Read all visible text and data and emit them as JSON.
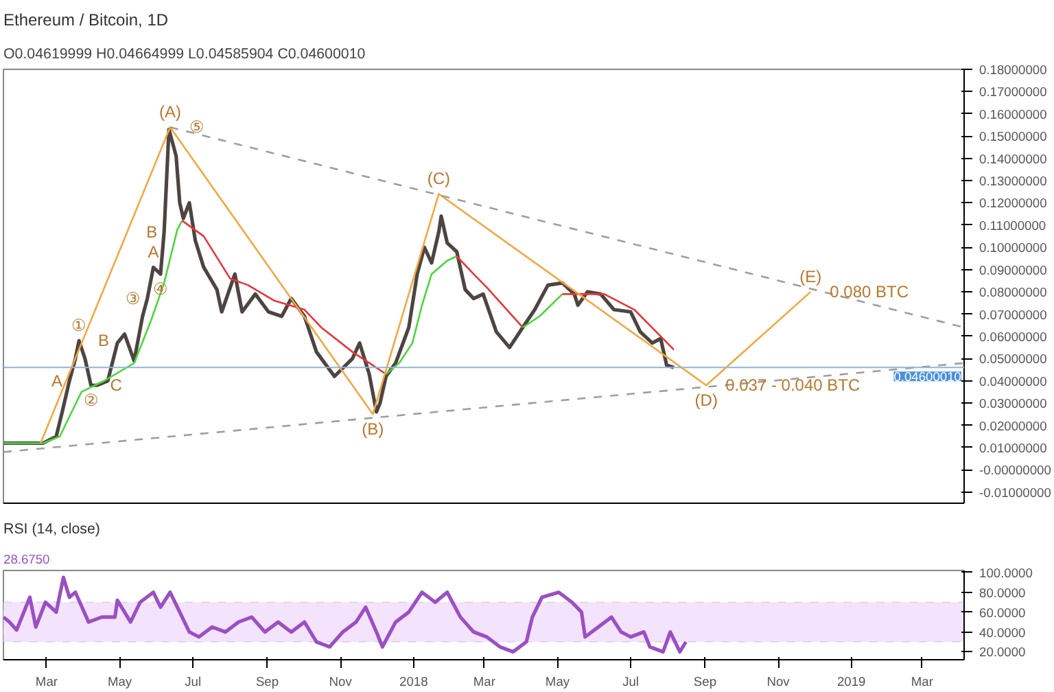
{
  "chart_data": [
    {
      "type": "line",
      "title": "Ethereum / Bitcoin, 1D",
      "subtitle": "O0.04619999 H0.04664999 L0.04585904 C0.04600010",
      "tick_labels": "y",
      "xlim": [
        "2017-01-24",
        "2019-04-05"
      ],
      "xticks": [
        {
          "value": "2017-03-01",
          "label": null
        },
        {
          "value": "2017-05-01",
          "label": null
        },
        {
          "value": "2017-07-01",
          "label": null
        },
        {
          "value": "2017-09-01",
          "label": null
        },
        {
          "value": "2017-11-01",
          "label": null
        },
        {
          "value": "2018-01-01",
          "label": null
        },
        {
          "value": "2018-03-01",
          "label": null
        },
        {
          "value": "2018-05-01",
          "label": null
        },
        {
          "value": "2018-07-01",
          "label": null
        },
        {
          "value": "2018-09-01",
          "label": null
        },
        {
          "value": "2018-11-01",
          "label": null
        },
        {
          "value": "2019-01-01",
          "label": null
        },
        {
          "value": "2019-03-01",
          "label": null
        }
      ],
      "ylim": [
        -0.015,
        0.18
      ],
      "yticks": [
        {
          "value": -0.01,
          "label": "-0.01000000"
        },
        {
          "value": 0,
          "label": "-0.00000000"
        },
        {
          "value": 0.01,
          "label": "0.01000000"
        },
        {
          "value": 0.02,
          "label": "0.02000000"
        },
        {
          "value": 0.03,
          "label": "0.03000000"
        },
        {
          "value": 0.04,
          "label": "0.04000000"
        },
        {
          "value": 0.05,
          "label": "0.05000000"
        },
        {
          "value": 0.06,
          "label": "0.06000000"
        },
        {
          "value": 0.07,
          "label": "0.07000000"
        },
        {
          "value": 0.08,
          "label": "0.08000000"
        },
        {
          "value": 0.09,
          "label": "0.09000000"
        },
        {
          "value": 0.1,
          "label": "0.10000000"
        },
        {
          "value": 0.11,
          "label": "0.11000000"
        },
        {
          "value": 0.12,
          "label": "0.12000000"
        },
        {
          "value": 0.13,
          "label": "0.13000000"
        },
        {
          "value": 0.14,
          "label": "0.14000000"
        },
        {
          "value": 0.15,
          "label": "0.15000000"
        },
        {
          "value": 0.16,
          "label": "0.16000000"
        },
        {
          "value": 0.17,
          "label": "0.17000000"
        },
        {
          "value": 0.18,
          "label": "0.18000000"
        }
      ],
      "ref_lines": [
        {
          "axis": "y",
          "value": 0.0460001,
          "label": "0.04600010",
          "color": "#90b4d8"
        }
      ],
      "series": [
        {
          "color": "#4e4440",
          "x": [
            "2017-01-24",
            "2017-02-15",
            "2017-02-26",
            "2017-03-09",
            "2017-03-14",
            "2017-03-20",
            "2017-03-25",
            "2017-03-28",
            "2017-04-02",
            "2017-04-07",
            "2017-04-12",
            "2017-04-21",
            "2017-04-29",
            "2017-05-05",
            "2017-05-13",
            "2017-05-20",
            "2017-05-24",
            "2017-05-29",
            "2017-06-04",
            "2017-06-07",
            "2017-06-11",
            "2017-06-17",
            "2017-06-20",
            "2017-06-23",
            "2017-06-28",
            "2017-07-03",
            "2017-07-10",
            "2017-07-21",
            "2017-07-25",
            "2017-08-05",
            "2017-08-11",
            "2017-08-22",
            "2017-09-02",
            "2017-09-13",
            "2017-09-21",
            "2017-10-02",
            "2017-10-12",
            "2017-10-27",
            "2017-11-11",
            "2017-11-17",
            "2017-11-25",
            "2017-12-01",
            "2017-12-04",
            "2017-12-09",
            "2017-12-17",
            "2017-12-28",
            "2018-01-04",
            "2018-01-10",
            "2018-01-16",
            "2018-01-22",
            "2018-01-24",
            "2018-01-29",
            "2018-02-06",
            "2018-02-13",
            "2018-02-20",
            "2018-02-28",
            "2018-03-11",
            "2018-03-22",
            "2018-04-02",
            "2018-04-12",
            "2018-04-23",
            "2018-05-05",
            "2018-05-15",
            "2018-05-18",
            "2018-05-26",
            "2018-06-06",
            "2018-06-17",
            "2018-07-01",
            "2018-07-09",
            "2018-07-19",
            "2018-07-26",
            "2018-07-31",
            "2018-08-06"
          ],
          "values": [
            0.012,
            0.012,
            0.012,
            0.015,
            0.026,
            0.04,
            0.05,
            0.058,
            0.05,
            0.038,
            0.038,
            0.04,
            0.057,
            0.061,
            0.049,
            0.069,
            0.077,
            0.091,
            0.088,
            0.107,
            0.153,
            0.141,
            0.12,
            0.113,
            0.12,
            0.103,
            0.091,
            0.081,
            0.071,
            0.088,
            0.071,
            0.079,
            0.071,
            0.069,
            0.077,
            0.069,
            0.053,
            0.042,
            0.05,
            0.057,
            0.043,
            0.026,
            0.03,
            0.042,
            0.048,
            0.064,
            0.088,
            0.1,
            0.093,
            0.107,
            0.114,
            0.102,
            0.098,
            0.081,
            0.077,
            0.079,
            0.062,
            0.055,
            0.064,
            0.072,
            0.083,
            0.084,
            0.079,
            0.074,
            0.08,
            0.079,
            0.072,
            0.071,
            0.062,
            0.057,
            0.059,
            0.047,
            0.046
          ]
        },
        {
          "color": "#4cd63c",
          "x": [
            "2017-01-24",
            "2017-02-26",
            "2017-03-12",
            "2017-03-30",
            "2017-04-18",
            "2017-05-13",
            "2017-05-27",
            "2017-06-07",
            "2017-06-18",
            "2017-06-22"
          ],
          "values": [
            0.012,
            0.012,
            0.015,
            0.035,
            0.04,
            0.048,
            0.067,
            0.084,
            0.108,
            0.112
          ]
        },
        {
          "color": "#e8353b",
          "x": [
            "2017-06-22",
            "2017-07-10",
            "2017-08-01",
            "2017-08-16",
            "2017-09-07",
            "2017-10-02",
            "2017-10-16",
            "2017-11-11",
            "2017-11-28",
            "2017-12-09"
          ],
          "values": [
            0.112,
            0.105,
            0.086,
            0.083,
            0.076,
            0.072,
            0.064,
            0.053,
            0.047,
            0.043
          ]
        },
        {
          "color": "#4cd63c",
          "x": [
            "2017-12-09",
            "2017-12-20",
            "2017-12-31",
            "2018-01-08",
            "2018-01-16",
            "2018-01-29",
            "2018-02-06"
          ],
          "values": [
            0.043,
            0.048,
            0.057,
            0.074,
            0.088,
            0.094,
            0.096
          ]
        },
        {
          "color": "#e8353b",
          "x": [
            "2018-02-06",
            "2018-02-20",
            "2018-03-03",
            "2018-04-02"
          ],
          "values": [
            0.096,
            0.088,
            0.082,
            0.064
          ]
        },
        {
          "color": "#4cd63c",
          "x": [
            "2018-04-02",
            "2018-04-16",
            "2018-05-05"
          ],
          "values": [
            0.064,
            0.069,
            0.079
          ]
        },
        {
          "color": "#e8353b",
          "x": [
            "2018-05-05",
            "2018-06-09",
            "2018-07-04",
            "2018-07-26",
            "2018-08-06"
          ],
          "values": [
            0.079,
            0.079,
            0.072,
            0.06,
            0.054
          ]
        },
        {
          "color": "#f5a742",
          "x": [
            "2017-02-24",
            "2017-06-12",
            "2017-11-28",
            "2018-01-22",
            "2018-09-02",
            "2018-11-28"
          ],
          "values": [
            0.012,
            0.154,
            0.025,
            0.124,
            0.038,
            0.08
          ]
        },
        {
          "color": "#9e9e9e",
          "line_style": "dashed",
          "x": [
            "2017-06-12",
            "2019-04-05"
          ],
          "values": [
            0.154,
            0.064
          ]
        },
        {
          "color": "#9e9e9e",
          "line_style": "dashed",
          "x": [
            "2017-01-24",
            "2019-04-05"
          ],
          "values": [
            0.008,
            0.048
          ]
        }
      ],
      "annotations": [
        {
          "text": "(A)",
          "x": "2017-06-12",
          "y": 0.154
        },
        {
          "text": "(B)",
          "x": "2017-11-28",
          "y": 0.025
        },
        {
          "text": "(C)",
          "x": "2018-01-22",
          "y": 0.124
        },
        {
          "text": "(D)",
          "x": "2018-09-02",
          "y": 0.038
        },
        {
          "text": "(E)",
          "x": "2018-11-28",
          "y": 0.08
        },
        {
          "text": "0.080 BTC",
          "x": "2018-11-28",
          "y": 0.08
        },
        {
          "text": "0.037 - 0.040 BTC",
          "x": "2018-09-02",
          "y": 0.038
        },
        {
          "text": "①",
          "x": "2017-03-28",
          "y": 0.058
        },
        {
          "text": "②",
          "x": "2017-04-07",
          "y": 0.038
        },
        {
          "text": "③",
          "x": "2017-05-24",
          "y": 0.077
        },
        {
          "text": "④",
          "x": "2017-06-04",
          "y": 0.088
        },
        {
          "text": "⑤",
          "x": "2017-06-12",
          "y": 0.154
        },
        {
          "text": "A",
          "x": "2017-03-20",
          "y": 0.04
        },
        {
          "text": "B",
          "x": "2017-03-28",
          "y": 0.058
        },
        {
          "text": "C",
          "x": "2017-04-07",
          "y": 0.038
        },
        {
          "text": "A",
          "x": "2017-05-29",
          "y": 0.091
        },
        {
          "text": "B",
          "x": "2017-06-07",
          "y": 0.107
        }
      ]
    },
    {
      "type": "line",
      "title": "RSI (14, close)",
      "annotations": [
        "28.6750"
      ],
      "xlim": [
        "2017-01-24",
        "2019-04-05"
      ],
      "xticks": [
        {
          "value": "2017-03-01",
          "label": "Mar"
        },
        {
          "value": "2017-05-01",
          "label": "May"
        },
        {
          "value": "2017-07-01",
          "label": "Jul"
        },
        {
          "value": "2017-09-01",
          "label": "Sep"
        },
        {
          "value": "2017-11-01",
          "label": "Nov"
        },
        {
          "value": "2018-01-01",
          "label": "2018"
        },
        {
          "value": "2018-03-01",
          "label": "Mar"
        },
        {
          "value": "2018-05-01",
          "label": "May"
        },
        {
          "value": "2018-07-01",
          "label": "Jul"
        },
        {
          "value": "2018-09-01",
          "label": "Sep"
        },
        {
          "value": "2018-11-01",
          "label": "Nov"
        },
        {
          "value": "2019-01-01",
          "label": "2019"
        },
        {
          "value": "2019-03-01",
          "label": "Mar"
        }
      ],
      "ylim": [
        12,
        102
      ],
      "yticks": [
        {
          "value": 20,
          "label": "20.0000"
        },
        {
          "value": 40,
          "label": "40.0000"
        },
        {
          "value": 60,
          "label": "60.0000"
        },
        {
          "value": 80,
          "label": "80.0000"
        },
        {
          "value": 100,
          "label": "100.0000"
        }
      ],
      "bands": [
        {
          "axis": "y",
          "from": 30,
          "to": 70,
          "color": "#f3e3fc"
        }
      ],
      "series": [
        {
          "color": "#9b4fc4",
          "x": [
            "2017-01-24",
            "2017-01-29",
            "2017-02-04",
            "2017-02-15",
            "2017-02-20",
            "2017-02-28",
            "2017-03-09",
            "2017-03-15",
            "2017-03-20",
            "2017-03-25",
            "2017-04-05",
            "2017-04-16",
            "2017-04-27",
            "2017-04-29",
            "2017-05-10",
            "2017-05-18",
            "2017-05-29",
            "2017-06-04",
            "2017-06-12",
            "2017-06-20",
            "2017-06-28",
            "2017-07-06",
            "2017-07-17",
            "2017-07-28",
            "2017-08-08",
            "2017-08-19",
            "2017-08-30",
            "2017-09-10",
            "2017-09-21",
            "2017-10-02",
            "2017-10-12",
            "2017-10-23",
            "2017-11-03",
            "2017-11-14",
            "2017-11-22",
            "2017-12-01",
            "2017-12-06",
            "2017-12-17",
            "2017-12-28",
            "2018-01-08",
            "2018-01-19",
            "2018-01-29",
            "2018-02-09",
            "2018-02-20",
            "2018-03-03",
            "2018-03-14",
            "2018-03-25",
            "2018-04-05",
            "2018-04-10",
            "2018-04-18",
            "2018-05-02",
            "2018-05-13",
            "2018-05-21",
            "2018-05-24",
            "2018-06-04",
            "2018-06-15",
            "2018-06-23",
            "2018-07-01",
            "2018-07-12",
            "2018-07-17",
            "2018-07-28",
            "2018-08-03",
            "2018-08-11",
            "2018-08-16"
          ],
          "values": [
            55,
            50,
            42,
            75,
            45,
            70,
            60,
            95,
            75,
            80,
            50,
            55,
            55,
            72,
            50,
            70,
            80,
            65,
            80,
            60,
            40,
            35,
            45,
            40,
            50,
            55,
            40,
            50,
            40,
            50,
            30,
            25,
            40,
            50,
            65,
            40,
            25,
            50,
            60,
            80,
            70,
            80,
            55,
            40,
            35,
            25,
            20,
            30,
            55,
            75,
            80,
            70,
            60,
            35,
            45,
            55,
            40,
            35,
            40,
            25,
            20,
            40,
            20,
            30
          ]
        }
      ]
    }
  ]
}
